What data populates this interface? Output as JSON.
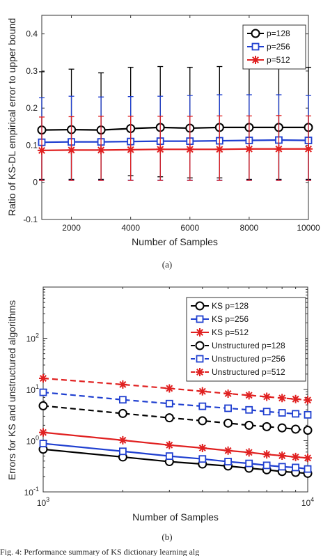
{
  "chart_data": [
    {
      "id": "a",
      "type": "line",
      "caption": "(a)",
      "xlabel": "Number of Samples",
      "ylabel": "Ratio of KS-DL empirical error to upper bound",
      "xlim": [
        1000,
        10000
      ],
      "ylim": [
        -0.1,
        0.45
      ],
      "xticks": [
        2000,
        4000,
        6000,
        8000,
        10000
      ],
      "yticks": [
        -0.1,
        0,
        0.1,
        0.2,
        0.3,
        0.4
      ],
      "ytick_labels": [
        "-0.1",
        "0",
        "0.1",
        "0.2",
        "0.3",
        "0.4"
      ],
      "legend_position": "top-right",
      "x": [
        1000,
        2000,
        3000,
        4000,
        5000,
        6000,
        7000,
        8000,
        9000,
        10000
      ],
      "series": [
        {
          "name": "p=128",
          "color": "#000000",
          "marker": "circle",
          "dash": "solid",
          "values": [
            0.141,
            0.142,
            0.141,
            0.145,
            0.148,
            0.146,
            0.148,
            0.148,
            0.148,
            0.148
          ],
          "err_low": [
            0.008,
            0.008,
            0.008,
            0.018,
            0.015,
            0.012,
            0.012,
            0.008,
            0.008,
            0.008
          ],
          "err_high": [
            0.298,
            0.305,
            0.295,
            0.31,
            0.312,
            0.31,
            0.312,
            0.315,
            0.312,
            0.31
          ]
        },
        {
          "name": "p=256",
          "color": "#1f3fd0",
          "marker": "square",
          "dash": "solid",
          "values": [
            0.108,
            0.109,
            0.109,
            0.11,
            0.111,
            0.111,
            0.112,
            0.113,
            0.114,
            0.113
          ],
          "err_low": [
            0.006,
            0.006,
            0.006,
            0.006,
            0.006,
            0.006,
            0.006,
            0.006,
            0.006,
            0.006
          ],
          "err_high": [
            0.228,
            0.232,
            0.23,
            0.231,
            0.232,
            0.234,
            0.236,
            0.236,
            0.236,
            0.234
          ]
        },
        {
          "name": "p=512",
          "color": "#e02020",
          "marker": "star",
          "dash": "solid",
          "values": [
            0.086,
            0.087,
            0.087,
            0.088,
            0.089,
            0.089,
            0.089,
            0.09,
            0.09,
            0.09
          ],
          "err_low": [
            0.005,
            0.005,
            0.005,
            0.005,
            0.005,
            0.005,
            0.005,
            0.005,
            0.005,
            0.005
          ],
          "err_high": [
            0.176,
            0.177,
            0.178,
            0.178,
            0.178,
            0.178,
            0.179,
            0.179,
            0.18,
            0.179
          ]
        }
      ]
    },
    {
      "id": "b",
      "type": "line",
      "caption": "(b)",
      "xlabel": "Number of Samples",
      "ylabel": "Errors for KS and unstructured algorithms",
      "xscale": "log",
      "yscale": "log",
      "xlim": [
        1000,
        10000
      ],
      "ylim": [
        0.1,
        1000
      ],
      "xtick_labels": [
        {
          "base": "10",
          "exp": "3"
        },
        {
          "base": "10",
          "exp": "4"
        }
      ],
      "ytick_labels": [
        {
          "base": "10",
          "exp": "-1"
        },
        {
          "base": "10",
          "exp": "0"
        },
        {
          "base": "10",
          "exp": "1"
        },
        {
          "base": "10",
          "exp": "2"
        }
      ],
      "legend_position": "top-right",
      "x": [
        1000,
        2000,
        3000,
        4000,
        5000,
        6000,
        7000,
        8000,
        9000,
        10000
      ],
      "series": [
        {
          "name": "KS p=128",
          "color": "#000000",
          "marker": "circle",
          "dash": "solid",
          "values": [
            0.68,
            0.48,
            0.39,
            0.35,
            0.32,
            0.29,
            0.27,
            0.25,
            0.24,
            0.23
          ]
        },
        {
          "name": "KS p=256",
          "color": "#1f3fd0",
          "marker": "square",
          "dash": "solid",
          "values": [
            0.88,
            0.62,
            0.5,
            0.44,
            0.39,
            0.36,
            0.33,
            0.31,
            0.3,
            0.28
          ]
        },
        {
          "name": "KS p=512",
          "color": "#e02020",
          "marker": "star",
          "dash": "solid",
          "values": [
            1.45,
            1.02,
            0.82,
            0.72,
            0.64,
            0.59,
            0.54,
            0.51,
            0.48,
            0.46
          ]
        },
        {
          "name": "Unstructured p=128",
          "color": "#000000",
          "marker": "circle",
          "dash": "dashed",
          "values": [
            4.8,
            3.4,
            2.8,
            2.45,
            2.2,
            2.0,
            1.88,
            1.78,
            1.68,
            1.6
          ]
        },
        {
          "name": "Unstructured p=256",
          "color": "#1f3fd0",
          "marker": "square",
          "dash": "dashed",
          "values": [
            8.8,
            6.3,
            5.3,
            4.7,
            4.3,
            4.0,
            3.7,
            3.5,
            3.35,
            3.2
          ]
        },
        {
          "name": "Unstructured p=512",
          "color": "#e02020",
          "marker": "star",
          "dash": "dashed",
          "values": [
            16.5,
            12.5,
            10.5,
            9.2,
            8.3,
            7.7,
            7.2,
            6.8,
            6.5,
            6.2
          ]
        }
      ]
    }
  ],
  "bottom_fragment": "Fig. 4: Performance summary of KS dictionary learning alg"
}
